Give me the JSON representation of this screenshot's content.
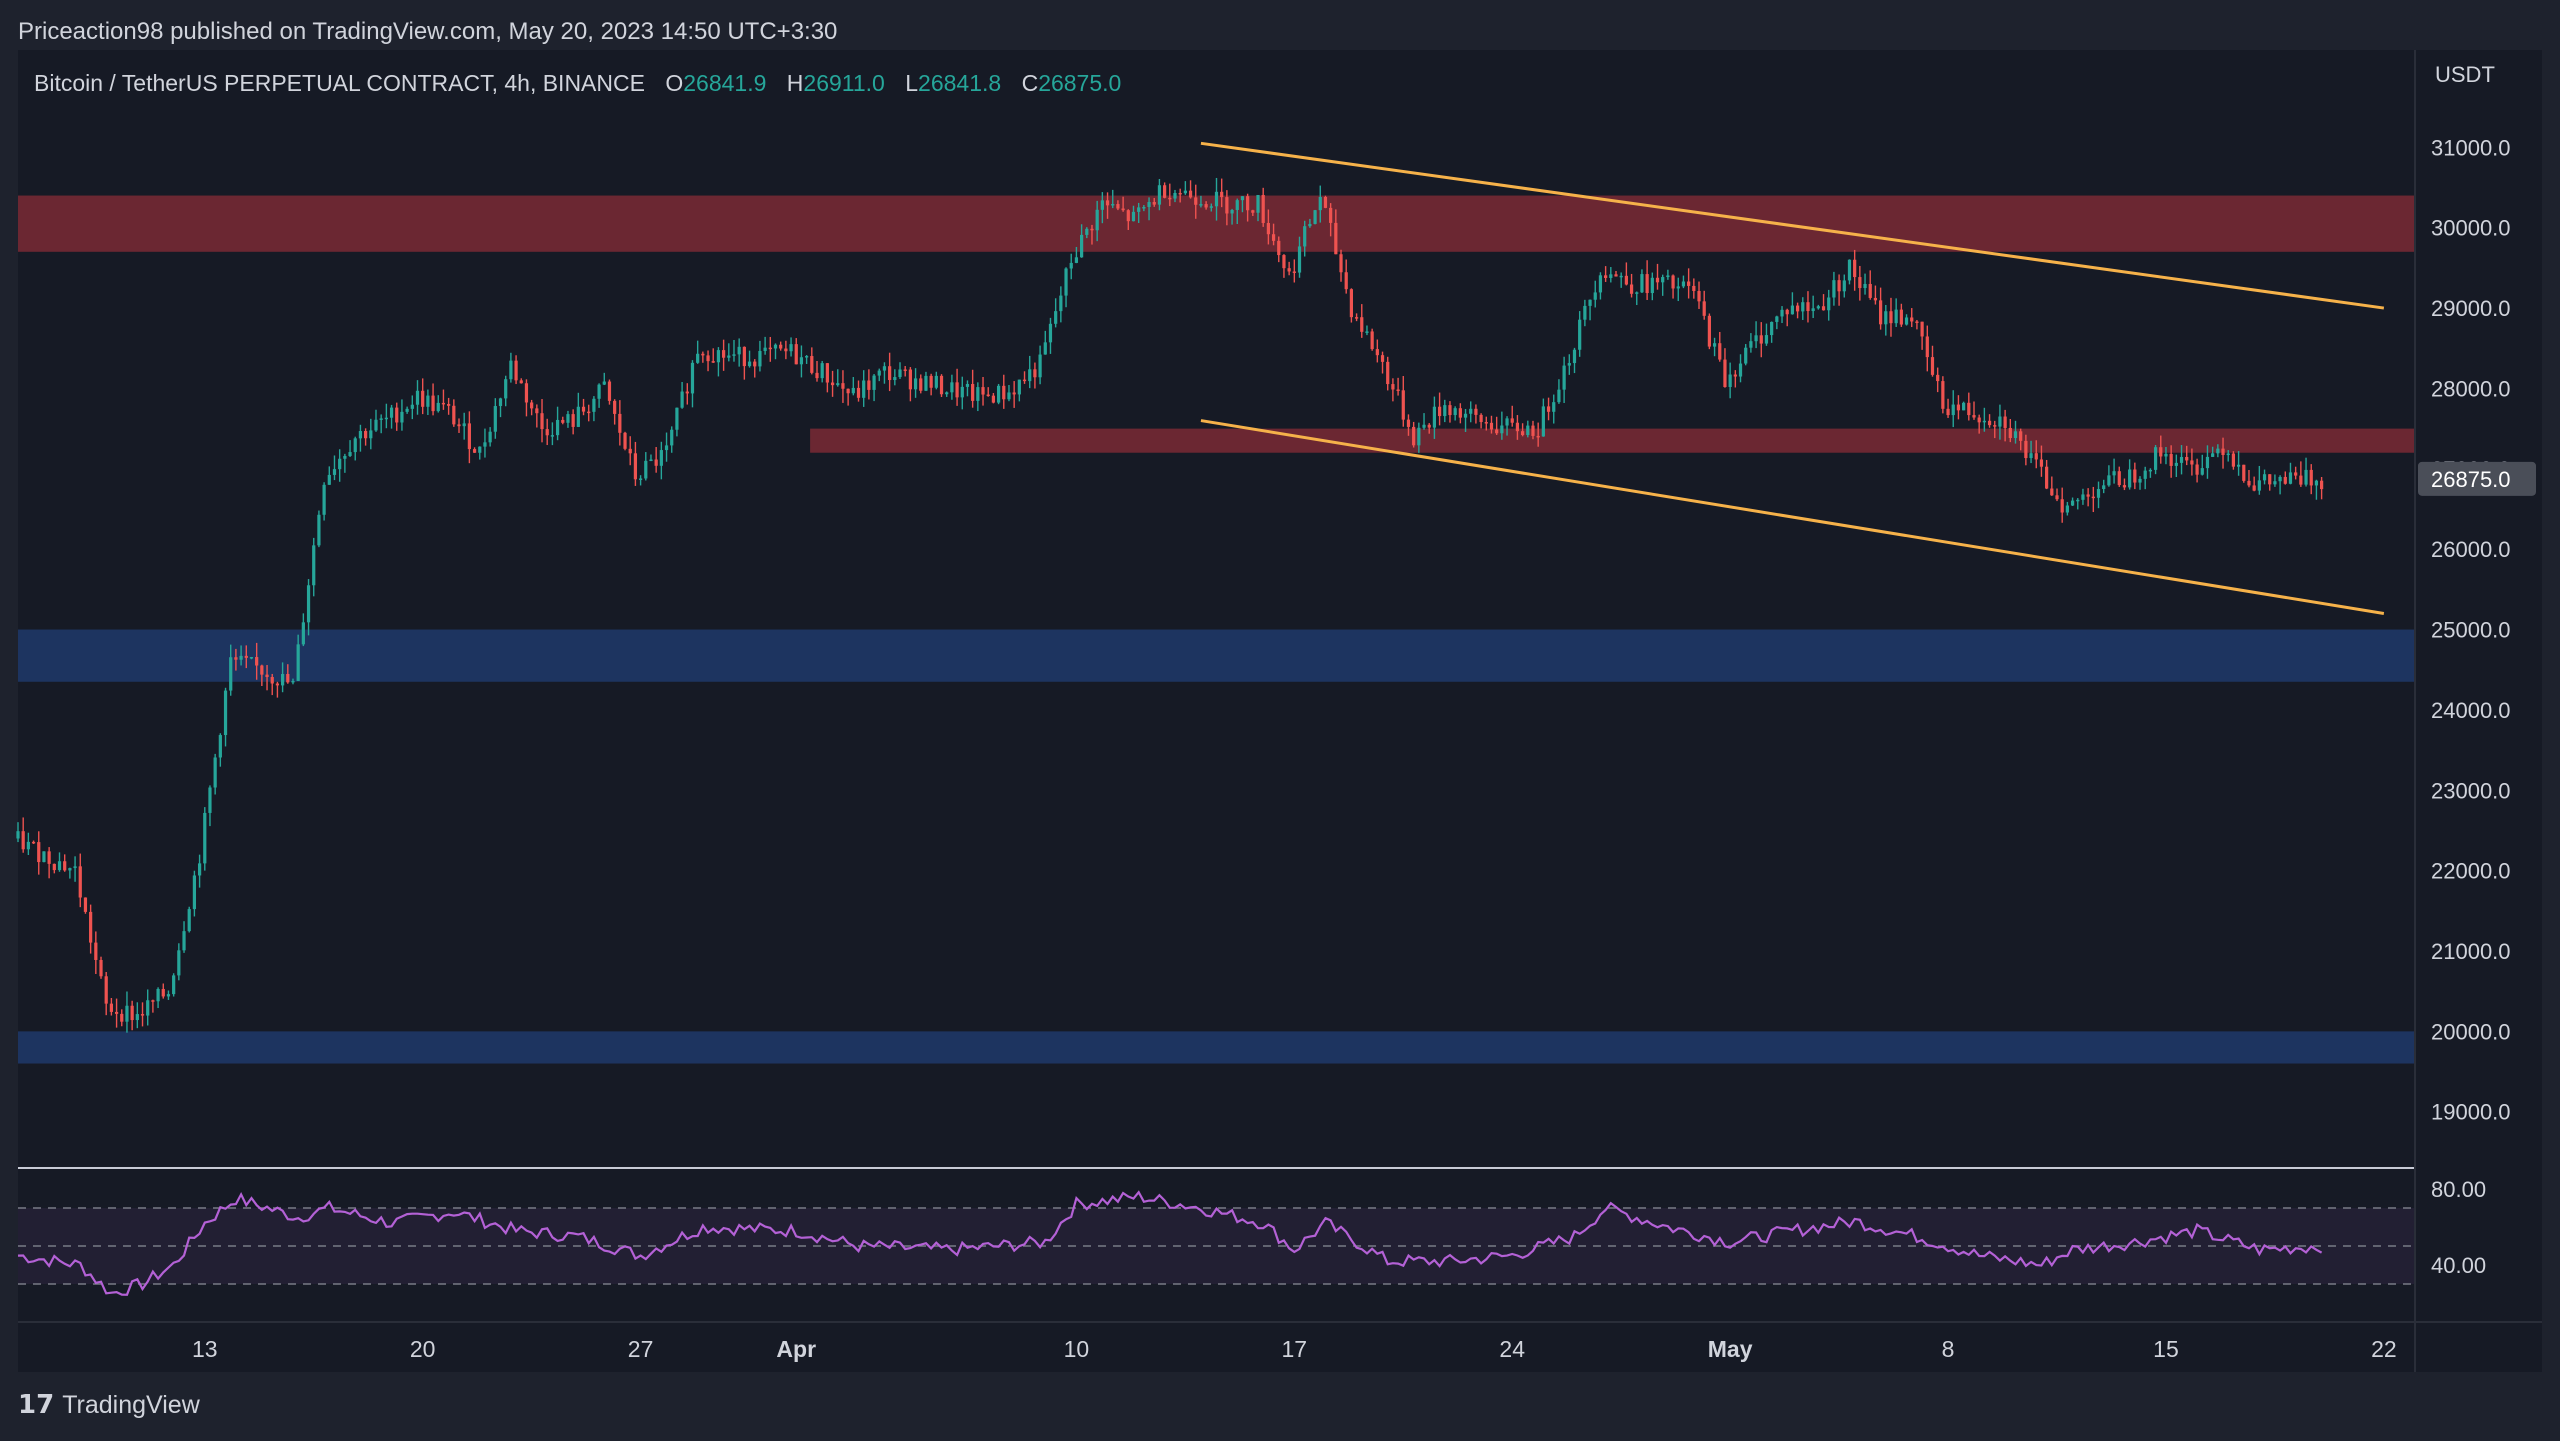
{
  "publisher_line": "Priceaction98 published on TradingView.com, May 20, 2023 14:50 UTC+3:30",
  "brand": "TradingView",
  "legend": {
    "symbol": "Bitcoin / TetherUS PERPETUAL CONTRACT, 4h, BINANCE",
    "o_label": "O",
    "o": "26841.9",
    "h_label": "H",
    "h": "26911.0",
    "l_label": "L",
    "l": "26841.8",
    "c_label": "C",
    "c": "26875.0"
  },
  "colors": {
    "up": "#26a69a",
    "down": "#ef5350",
    "resistance_zone": "#7a2a35",
    "support_zone": "#1f3a6b",
    "trendline": "#f6b24a",
    "rsi": "#b461d6",
    "background": "#161a25"
  },
  "chart_data": [
    {
      "type": "candlestick",
      "interval": "4h",
      "currency": "USDT",
      "ylim": [
        18300,
        31900
      ],
      "y_ticks": [
        "31000.0",
        "30000.0",
        "29000.0",
        "28000.0",
        "27000.0",
        "26000.0",
        "25000.0",
        "24000.0",
        "23000.0",
        "22000.0",
        "21000.0",
        "20000.0",
        "19000.0"
      ],
      "x_ticks": [
        {
          "label": "13",
          "date": "2023-03-13"
        },
        {
          "label": "20",
          "date": "2023-03-20"
        },
        {
          "label": "27",
          "date": "2023-03-27"
        },
        {
          "label": "Apr",
          "date": "2023-04-01"
        },
        {
          "label": "10",
          "date": "2023-04-10"
        },
        {
          "label": "17",
          "date": "2023-04-17"
        },
        {
          "label": "24",
          "date": "2023-04-24"
        },
        {
          "label": "May",
          "date": "2023-05-01"
        },
        {
          "label": "8",
          "date": "2023-05-08"
        },
        {
          "label": "15",
          "date": "2023-05-15"
        },
        {
          "label": "22",
          "date": "2023-05-22"
        }
      ],
      "last_price": "26875.0",
      "series_close_points": [
        [
          "2023-03-07",
          22400
        ],
        [
          "2023-03-09",
          22000
        ],
        [
          "2023-03-10",
          20300
        ],
        [
          "2023-03-11",
          20200
        ],
        [
          "2023-03-12",
          20500
        ],
        [
          "2023-03-13",
          22200
        ],
        [
          "2023-03-14",
          24600
        ],
        [
          "2023-03-15",
          24500
        ],
        [
          "2023-03-16",
          24300
        ],
        [
          "2023-03-17",
          26900
        ],
        [
          "2023-03-18",
          27400
        ],
        [
          "2023-03-19",
          27600
        ],
        [
          "2023-03-20",
          27900
        ],
        [
          "2023-03-21",
          27700
        ],
        [
          "2023-03-22",
          27200
        ],
        [
          "2023-03-23",
          28300
        ],
        [
          "2023-03-24",
          27500
        ],
        [
          "2023-03-25",
          27600
        ],
        [
          "2023-03-26",
          28000
        ],
        [
          "2023-03-27",
          26900
        ],
        [
          "2023-03-28",
          27200
        ],
        [
          "2023-03-29",
          28500
        ],
        [
          "2023-03-30",
          28400
        ],
        [
          "2023-03-31",
          28400
        ],
        [
          "2023-04-01",
          28450
        ],
        [
          "2023-04-02",
          28200
        ],
        [
          "2023-04-03",
          27900
        ],
        [
          "2023-04-04",
          28200
        ],
        [
          "2023-04-05",
          28100
        ],
        [
          "2023-04-06",
          28000
        ],
        [
          "2023-04-07",
          27900
        ],
        [
          "2023-04-08",
          27950
        ],
        [
          "2023-04-09",
          28300
        ],
        [
          "2023-04-10",
          29600
        ],
        [
          "2023-04-11",
          30300
        ],
        [
          "2023-04-12",
          30100
        ],
        [
          "2023-04-13",
          30500
        ],
        [
          "2023-04-14",
          30400
        ],
        [
          "2023-04-15",
          30300
        ],
        [
          "2023-04-16",
          30300
        ],
        [
          "2023-04-17",
          29400
        ],
        [
          "2023-04-18",
          30400
        ],
        [
          "2023-04-19",
          29000
        ],
        [
          "2023-04-20",
          28300
        ],
        [
          "2023-04-21",
          27400
        ],
        [
          "2023-04-22",
          27800
        ],
        [
          "2023-04-23",
          27600
        ],
        [
          "2023-04-24",
          27500
        ],
        [
          "2023-04-25",
          27500
        ],
        [
          "2023-04-26",
          28400
        ],
        [
          "2023-04-27",
          29500
        ],
        [
          "2023-04-28",
          29300
        ],
        [
          "2023-04-29",
          29300
        ],
        [
          "2023-04-30",
          29200
        ],
        [
          "2023-05-01",
          28100
        ],
        [
          "2023-05-02",
          28600
        ],
        [
          "2023-05-03",
          29000
        ],
        [
          "2023-05-04",
          29000
        ],
        [
          "2023-05-05",
          29500
        ],
        [
          "2023-05-06",
          28900
        ],
        [
          "2023-05-07",
          28900
        ],
        [
          "2023-05-08",
          27800
        ],
        [
          "2023-05-09",
          27700
        ],
        [
          "2023-05-10",
          27600
        ],
        [
          "2023-05-11",
          27000
        ],
        [
          "2023-05-12",
          26500
        ],
        [
          "2023-05-13",
          26800
        ],
        [
          "2023-05-14",
          26900
        ],
        [
          "2023-05-15",
          27200
        ],
        [
          "2023-05-16",
          27000
        ],
        [
          "2023-05-17",
          27300
        ],
        [
          "2023-05-18",
          26800
        ],
        [
          "2023-05-19",
          26850
        ],
        [
          "2023-05-20",
          26875
        ]
      ],
      "zones": [
        {
          "name": "resistance-upper",
          "from": 29700,
          "to": 30400,
          "color": "#7a2a35",
          "start": "2023-03-07"
        },
        {
          "name": "resistance-lower",
          "from": 27200,
          "to": 27500,
          "color": "#7a2a35",
          "start": "2023-03-31"
        },
        {
          "name": "support-upper",
          "from": 24350,
          "to": 25000,
          "color": "#1f3a6b",
          "start": "2023-03-07"
        },
        {
          "name": "support-lower",
          "from": 19600,
          "to": 20000,
          "color": "#1f3a6b",
          "start": "2023-03-07"
        }
      ],
      "trendlines": [
        {
          "name": "channel-upper",
          "p1": [
            "2023-04-14",
            31050
          ],
          "p2": [
            "2023-05-22",
            29000
          ]
        },
        {
          "name": "channel-lower",
          "p1": [
            "2023-04-14",
            27600
          ],
          "p2": [
            "2023-05-22",
            25200
          ]
        }
      ]
    },
    {
      "type": "line",
      "name": "RSI",
      "y_ticks": [
        "80.00",
        "40.00"
      ],
      "ylim": [
        10,
        90
      ],
      "bands": [
        70,
        50,
        30
      ],
      "points": [
        [
          "2023-03-07",
          45
        ],
        [
          "2023-03-09",
          40
        ],
        [
          "2023-03-10",
          25
        ],
        [
          "2023-03-11",
          30
        ],
        [
          "2023-03-12",
          40
        ],
        [
          "2023-03-13",
          62
        ],
        [
          "2023-03-14",
          75
        ],
        [
          "2023-03-16",
          65
        ],
        [
          "2023-03-17",
          70
        ],
        [
          "2023-03-19",
          62
        ],
        [
          "2023-03-21",
          68
        ],
        [
          "2023-03-23",
          58
        ],
        [
          "2023-03-25",
          55
        ],
        [
          "2023-03-27",
          45
        ],
        [
          "2023-03-29",
          60
        ],
        [
          "2023-04-01",
          58
        ],
        [
          "2023-04-03",
          50
        ],
        [
          "2023-04-06",
          48
        ],
        [
          "2023-04-09",
          52
        ],
        [
          "2023-04-10",
          72
        ],
        [
          "2023-04-12",
          76
        ],
        [
          "2023-04-14",
          70
        ],
        [
          "2023-04-16",
          62
        ],
        [
          "2023-04-17",
          48
        ],
        [
          "2023-04-18",
          62
        ],
        [
          "2023-04-20",
          42
        ],
        [
          "2023-04-22",
          42
        ],
        [
          "2023-04-24",
          45
        ],
        [
          "2023-04-26",
          55
        ],
        [
          "2023-04-27",
          70
        ],
        [
          "2023-04-29",
          60
        ],
        [
          "2023-05-01",
          52
        ],
        [
          "2023-05-03",
          58
        ],
        [
          "2023-05-05",
          63
        ],
        [
          "2023-05-07",
          55
        ],
        [
          "2023-05-09",
          45
        ],
        [
          "2023-05-11",
          40
        ],
        [
          "2023-05-12",
          48
        ],
        [
          "2023-05-14",
          52
        ],
        [
          "2023-05-16",
          58
        ],
        [
          "2023-05-18",
          48
        ],
        [
          "2023-05-20",
          50
        ]
      ]
    }
  ]
}
